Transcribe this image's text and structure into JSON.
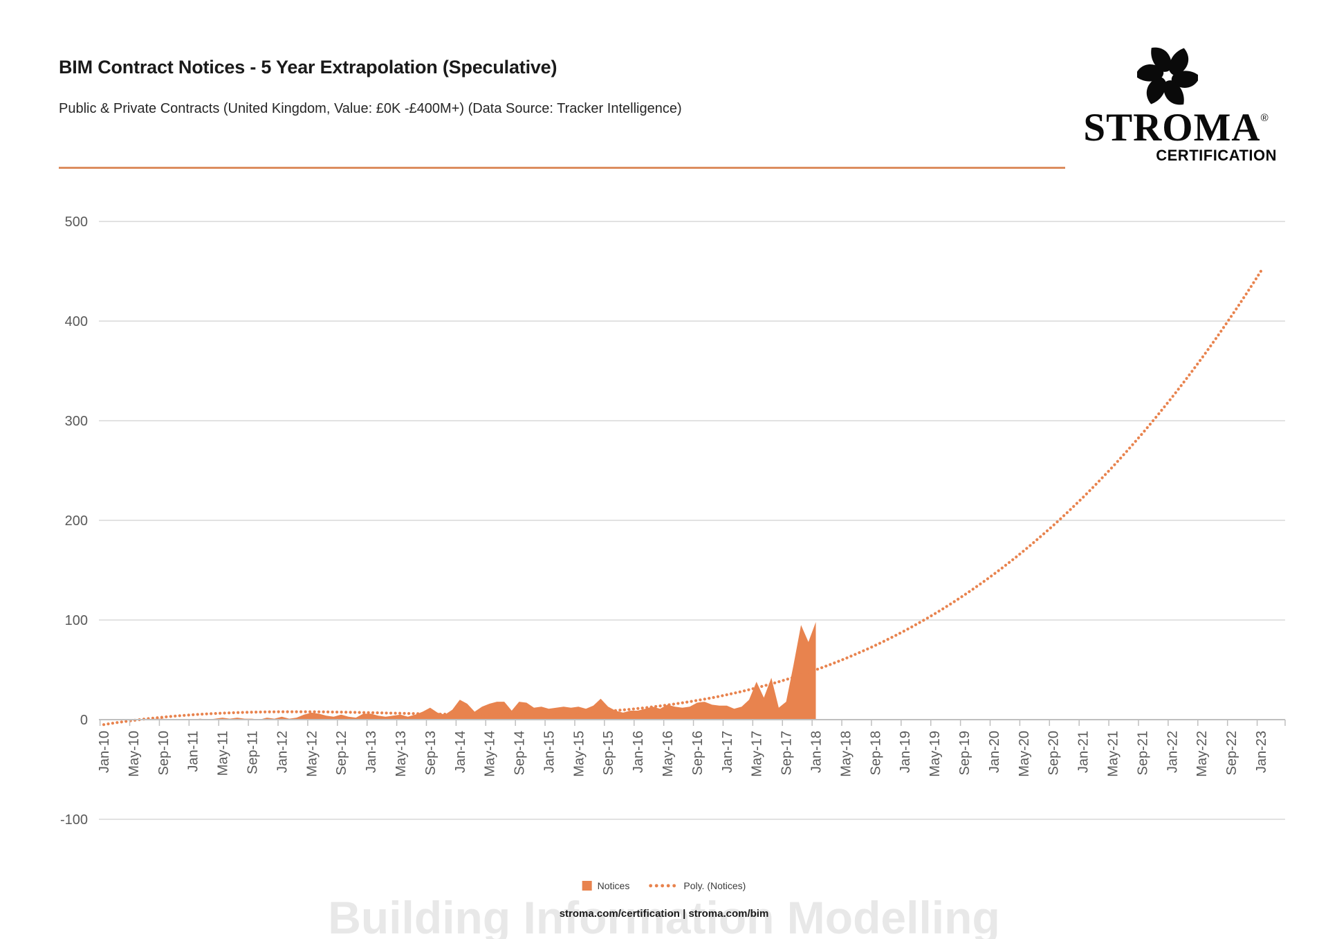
{
  "header": {
    "title": "BIM Contract Notices - 5 Year Extrapolation (Speculative)",
    "subtitle": "Public & Private Contracts (United Kingdom, Value: £0K -£400M+) (Data Source: Tracker Intelligence)"
  },
  "logo": {
    "brand": "STROMA",
    "registered": "®",
    "subtext": "CERTIFICATION"
  },
  "legend": {
    "notices_label": "Notices",
    "poly_label": "Poly. (Notices)"
  },
  "footer_text": "stroma.com/certification | stroma.com/bim",
  "watermark_text": "Building Information Modelling",
  "colors": {
    "accent_orange": "#E8834E",
    "divider_orange": "#DC8D5F",
    "gridline_gray": "#D9D9D9",
    "axis_gray": "#BFBFBF",
    "axis_label_gray": "#595959",
    "watermark_gray": "#E8E8E8",
    "logo_black": "#0A0A0A"
  },
  "chart_data": {
    "type": "area",
    "title": "BIM Contract Notices - 5 Year Extrapolation (Speculative)",
    "grid": true,
    "legend_position": "bottom",
    "x_axis": {
      "unit": "month",
      "start": "Jan-10",
      "end": "Jan-23",
      "tick_every_months": 4,
      "tick_labels": [
        "Jan-10",
        "May-10",
        "Sep-10",
        "Jan-11",
        "May-11",
        "Sep-11",
        "Jan-12",
        "May-12",
        "Sep-12",
        "Jan-13",
        "May-13",
        "Sep-13",
        "Jan-14",
        "May-14",
        "Sep-14",
        "Jan-15",
        "May-15",
        "Sep-15",
        "Jan-16",
        "May-16",
        "Sep-16",
        "Jan-17",
        "May-17",
        "Sep-17",
        "Jan-18",
        "May-18",
        "Sep-18",
        "Jan-19",
        "May-19",
        "Sep-19",
        "Jan-20",
        "May-20",
        "Sep-20",
        "Jan-21",
        "May-21",
        "Sep-21",
        "Jan-22",
        "May-22",
        "Sep-22",
        "Jan-23"
      ]
    },
    "y_axis": {
      "min": -100,
      "max": 500,
      "tick_step": 100,
      "tick_labels": [
        500,
        400,
        300,
        200,
        100,
        0,
        -100
      ]
    },
    "series": [
      {
        "name": "Notices",
        "type": "area",
        "color": "#E8834E",
        "start_month": "Jan-10",
        "end_month": "Jan-18",
        "monthly_values": [
          0,
          0,
          0,
          0,
          0,
          0,
          0,
          1,
          1,
          0,
          0,
          0,
          0,
          1,
          0,
          1,
          2,
          1,
          2,
          1,
          1,
          0,
          2,
          1,
          3,
          1,
          2,
          5,
          7,
          6,
          4,
          3,
          5,
          3,
          2,
          6,
          6,
          4,
          3,
          4,
          5,
          3,
          5,
          8,
          12,
          7,
          5,
          10,
          20,
          16,
          8,
          13,
          16,
          18,
          18,
          9,
          18,
          17,
          12,
          13,
          11,
          12,
          13,
          12,
          13,
          11,
          14,
          21,
          13,
          9,
          7,
          9,
          9,
          11,
          13,
          11,
          15,
          13,
          12,
          13,
          17,
          18,
          15,
          14,
          14,
          11,
          13,
          20,
          38,
          22,
          42,
          12,
          18,
          55,
          95,
          78,
          98
        ]
      },
      {
        "name": "Poly. (Notices)",
        "type": "polynomial_trend",
        "style": "dotted",
        "color": "#E8834E",
        "cubic_coefficients_d_c_b_a": [
          -5,
          1.1996,
          -0.034581,
          0.00029223
        ],
        "t_months_domain": [
          0,
          156
        ],
        "values_at_tick_labels": [
          -5,
          -1,
          3,
          5,
          7,
          8,
          8,
          8,
          8,
          7,
          6,
          6,
          5,
          5,
          5,
          6,
          7,
          9,
          11,
          15,
          19,
          25,
          32,
          40,
          50,
          61,
          74,
          89,
          106,
          125,
          146,
          169,
          195,
          223,
          254,
          287,
          323,
          362,
          405,
          450
        ]
      }
    ]
  }
}
